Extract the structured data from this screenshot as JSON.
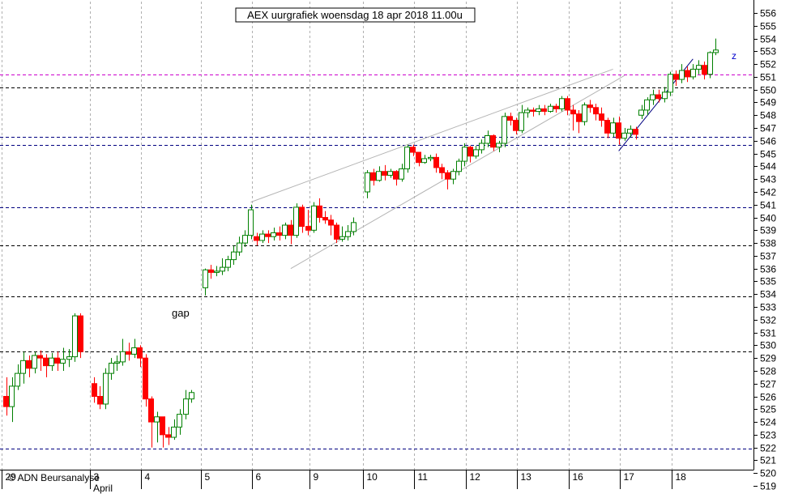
{
  "chart_data": {
    "type": "candlestick",
    "title": "AEX uurgrafiek woensdag 18 apr 2018 11.00u",
    "copyright": "© ADN Beursanalyse",
    "annotations": {
      "gap_label": "gap",
      "wave_label": "z"
    },
    "y_axis": {
      "min": 519,
      "max": 556,
      "tick_step": 1,
      "side": "right",
      "vertical_grid": true
    },
    "x_axis": {
      "day_labels": [
        "29",
        "3",
        "4",
        "5",
        "6",
        "9",
        "10",
        "11",
        "12",
        "13",
        "16",
        "17",
        "18"
      ],
      "month_labels": [
        {
          "label": "April",
          "at_day": "3"
        }
      ]
    },
    "colors": {
      "up": "#008000",
      "down": "#ff0000",
      "grid": "#b0b0b0",
      "horizontal_line": "#000080",
      "resistance_line": "#cc00cc",
      "channel_line": "#b4b4b4",
      "trend_line": "#000080",
      "axis": "#000000"
    },
    "horizontal_levels": [
      {
        "value": 551.2,
        "style": "magenta"
      },
      {
        "value": 550.2,
        "style": "black"
      },
      {
        "value": 546.3,
        "style": "blue"
      },
      {
        "value": 545.7,
        "style": "blue"
      },
      {
        "value": 540.8,
        "style": "blue"
      },
      {
        "value": 537.8,
        "style": "black"
      },
      {
        "value": 533.8,
        "style": "black"
      },
      {
        "value": 529.5,
        "style": "black"
      },
      {
        "value": 521.9,
        "style": "blue"
      }
    ],
    "candles": [
      [
        526.0,
        525.2,
        524.5,
        527.5
      ],
      [
        525.2,
        526.8,
        524.0,
        527.5
      ],
      [
        526.8,
        527.8,
        526.5,
        528.5
      ],
      [
        527.8,
        528.8,
        527.0,
        529.5
      ],
      [
        528.8,
        528.2,
        527.5,
        529.2
      ],
      [
        528.2,
        529.2,
        527.8,
        529.5
      ],
      [
        529.2,
        529.0,
        528.0,
        529.6
      ],
      [
        529.0,
        528.4,
        527.5,
        529.3
      ],
      [
        528.4,
        529.0,
        528.0,
        529.4
      ],
      [
        529.0,
        528.6,
        528.0,
        529.5
      ],
      [
        528.6,
        528.9,
        528.0,
        529.8
      ],
      [
        528.9,
        529.1,
        528.3,
        529.7
      ],
      [
        529.1,
        532.3,
        528.7,
        532.5
      ],
      [
        532.3,
        529.5,
        529.0,
        532.5
      ],
      [
        527.0,
        526.0,
        525.5,
        527.5
      ],
      [
        526.0,
        525.4,
        525.0,
        526.8
      ],
      [
        525.4,
        527.8,
        525.0,
        528.2
      ],
      [
        527.8,
        528.6,
        527.3,
        529.0
      ],
      [
        528.6,
        528.7,
        528.0,
        529.2
      ],
      [
        528.7,
        529.5,
        528.4,
        530.5
      ],
      [
        529.5,
        529.3,
        528.8,
        530.2
      ],
      [
        529.3,
        529.8,
        529.0,
        530.5
      ],
      [
        529.8,
        529.0,
        528.3,
        530.0
      ],
      [
        529.0,
        525.8,
        525.2,
        529.3
      ],
      [
        525.8,
        524.0,
        522.0,
        526.0
      ],
      [
        524.0,
        524.4,
        522.4,
        524.8
      ],
      [
        524.4,
        523.0,
        522.0,
        524.4
      ],
      [
        523.0,
        522.8,
        522.2,
        523.6
      ],
      [
        522.8,
        523.6,
        522.6,
        524.2
      ],
      [
        523.6,
        524.6,
        523.0,
        525.0
      ],
      [
        524.6,
        525.8,
        524.2,
        526.5
      ],
      [
        525.8,
        526.3,
        525.5,
        526.5
      ],
      [
        534.5,
        535.9,
        533.9,
        536.0
      ],
      [
        535.9,
        535.7,
        535.2,
        536.3
      ],
      [
        535.7,
        535.8,
        535.4,
        536.2
      ],
      [
        535.8,
        536.1,
        535.5,
        536.8
      ],
      [
        536.1,
        536.7,
        535.8,
        537.0
      ],
      [
        536.7,
        537.3,
        536.3,
        537.8
      ],
      [
        537.3,
        538.0,
        537.0,
        538.5
      ],
      [
        538.0,
        538.6,
        537.7,
        539.0
      ],
      [
        538.6,
        540.6,
        538.3,
        541.0
      ],
      [
        538.5,
        538.2,
        537.8,
        538.8
      ],
      [
        538.2,
        538.7,
        538.0,
        539.0
      ],
      [
        538.7,
        538.5,
        538.0,
        539.0
      ],
      [
        538.5,
        538.8,
        538.2,
        539.2
      ],
      [
        538.8,
        538.6,
        538.2,
        539.3
      ],
      [
        538.6,
        539.4,
        538.3,
        539.6
      ],
      [
        539.4,
        538.6,
        537.9,
        539.8
      ],
      [
        538.6,
        540.8,
        538.4,
        541.1
      ],
      [
        540.8,
        539.3,
        538.8,
        541.0
      ],
      [
        539.3,
        539.0,
        538.6,
        540.6
      ],
      [
        539.0,
        540.9,
        538.8,
        541.2
      ],
      [
        540.9,
        540.0,
        539.6,
        541.5
      ],
      [
        540.0,
        539.8,
        539.5,
        540.5
      ],
      [
        539.8,
        539.4,
        538.6,
        540.2
      ],
      [
        539.4,
        538.3,
        538.0,
        539.6
      ],
      [
        538.3,
        538.5,
        538.1,
        539.3
      ],
      [
        538.5,
        538.9,
        538.2,
        539.4
      ],
      [
        538.9,
        539.6,
        538.6,
        540.0
      ],
      [
        542.0,
        543.5,
        541.5,
        543.7
      ],
      [
        543.5,
        542.9,
        542.5,
        543.8
      ],
      [
        542.9,
        543.6,
        542.8,
        544.0
      ],
      [
        543.6,
        543.3,
        542.9,
        544.1
      ],
      [
        543.3,
        543.6,
        543.1,
        543.8
      ],
      [
        543.6,
        543.0,
        542.5,
        543.7
      ],
      [
        543.0,
        543.8,
        542.8,
        544.2
      ],
      [
        543.8,
        545.5,
        543.5,
        545.7
      ],
      [
        545.5,
        545.1,
        544.8,
        545.7
      ],
      [
        545.1,
        544.3,
        544.0,
        545.0
      ],
      [
        544.3,
        544.6,
        544.2,
        544.9
      ],
      [
        544.6,
        544.7,
        544.4,
        544.9
      ],
      [
        544.7,
        543.9,
        543.5,
        545.0
      ],
      [
        543.9,
        543.5,
        543.0,
        544.2
      ],
      [
        543.5,
        543.0,
        542.2,
        543.7
      ],
      [
        543.0,
        543.6,
        542.6,
        543.8
      ],
      [
        543.6,
        544.4,
        543.3,
        544.6
      ],
      [
        544.4,
        545.5,
        544.0,
        545.8
      ],
      [
        545.5,
        544.8,
        544.3,
        545.6
      ],
      [
        544.8,
        545.3,
        544.6,
        545.6
      ],
      [
        545.3,
        545.8,
        545.0,
        546.1
      ],
      [
        545.8,
        546.4,
        545.5,
        546.8
      ],
      [
        546.4,
        545.5,
        545.2,
        546.5
      ],
      [
        545.5,
        545.8,
        545.1,
        546.0
      ],
      [
        545.8,
        547.9,
        545.5,
        548.2
      ],
      [
        547.9,
        547.6,
        547.2,
        548.2
      ],
      [
        547.6,
        546.8,
        546.5,
        547.8
      ],
      [
        546.8,
        548.2,
        546.6,
        548.8
      ],
      [
        548.2,
        548.4,
        547.8,
        548.6
      ],
      [
        548.4,
        548.3,
        547.9,
        548.6
      ],
      [
        548.3,
        548.5,
        548.0,
        548.8
      ],
      [
        548.5,
        548.3,
        548.0,
        548.8
      ],
      [
        548.3,
        548.7,
        548.2,
        548.9
      ],
      [
        548.7,
        548.5,
        548.2,
        548.9
      ],
      [
        548.5,
        549.3,
        548.3,
        549.5
      ],
      [
        549.3,
        548.4,
        548.0,
        549.5
      ],
      [
        548.4,
        548.1,
        546.8,
        548.8
      ],
      [
        548.1,
        547.5,
        546.6,
        548.4
      ],
      [
        547.5,
        548.8,
        547.2,
        549.0
      ],
      [
        548.8,
        548.6,
        548.2,
        549.2
      ],
      [
        548.6,
        548.1,
        547.6,
        548.9
      ],
      [
        548.1,
        547.6,
        547.1,
        548.6
      ],
      [
        547.6,
        546.6,
        546.2,
        547.8
      ],
      [
        546.6,
        547.4,
        546.3,
        547.8
      ],
      [
        547.4,
        546.2,
        545.7,
        547.9
      ],
      [
        546.2,
        546.6,
        546.0,
        547.0
      ],
      [
        546.6,
        546.9,
        546.3,
        547.2
      ],
      [
        546.9,
        546.5,
        546.1,
        547.1
      ],
      [
        548.0,
        548.4,
        547.7,
        548.8
      ],
      [
        548.4,
        549.2,
        548.0,
        549.4
      ],
      [
        549.2,
        549.6,
        548.8,
        550.0
      ],
      [
        549.6,
        549.3,
        549.0,
        550.0
      ],
      [
        549.3,
        549.8,
        549.0,
        550.2
      ],
      [
        549.8,
        551.2,
        549.5,
        551.4
      ],
      [
        551.2,
        550.8,
        550.3,
        551.5
      ],
      [
        550.8,
        551.5,
        550.5,
        552.0
      ],
      [
        551.5,
        551.0,
        550.6,
        551.8
      ],
      [
        551.0,
        551.6,
        550.8,
        552.0
      ],
      [
        551.6,
        551.9,
        551.2,
        552.3
      ],
      [
        551.9,
        551.2,
        550.8,
        552.2
      ],
      [
        551.2,
        552.9,
        550.9,
        553.0
      ],
      [
        552.9,
        553.1,
        552.7,
        554.0
      ]
    ],
    "gaps_after": [
      13,
      31,
      58
    ],
    "day_start_index": [
      0,
      14,
      23,
      32,
      41,
      51,
      59,
      68,
      77,
      86,
      95,
      104,
      113
    ],
    "line_shapes": [
      {
        "type": "channel",
        "from": [
          40,
          541.2
        ],
        "to": [
          102,
          551.6
        ]
      },
      {
        "type": "channel",
        "from": [
          47,
          536.0
        ],
        "to": [
          104,
          551.1
        ]
      },
      {
        "type": "trend",
        "from": [
          103,
          545.2
        ],
        "to": [
          116,
          552.4
        ]
      }
    ]
  }
}
